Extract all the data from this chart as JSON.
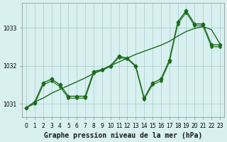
{
  "title": "Graphe pression niveau de la mer (hPa)",
  "bg_color": "#d8f0f0",
  "grid_color": "#b0d0d0",
  "line_color": "#1a6b1a",
  "x_labels": [
    "0",
    "1",
    "2",
    "3",
    "4",
    "5",
    "6",
    "7",
    "8",
    "9",
    "10",
    "11",
    "12",
    "13",
    "14",
    "15",
    "16",
    "17",
    "18",
    "19",
    "20",
    "21",
    "22",
    "23"
  ],
  "ylim": [
    1030.65,
    1033.65
  ],
  "yticks": [
    1031,
    1032,
    1033
  ],
  "y_main": [
    1030.9,
    1031.05,
    1031.55,
    1031.65,
    1031.5,
    1031.2,
    1031.2,
    1031.2,
    1031.85,
    1031.9,
    1032.0,
    1032.25,
    1032.2,
    1032.0,
    1031.15,
    1031.55,
    1031.65,
    1032.15,
    1033.15,
    1033.45,
    1033.1,
    1033.1,
    1032.55,
    1032.55
  ],
  "y_smooth": [
    1030.9,
    1031.05,
    1031.15,
    1031.28,
    1031.38,
    1031.48,
    1031.58,
    1031.68,
    1031.8,
    1031.9,
    1032.0,
    1032.1,
    1032.2,
    1032.3,
    1032.38,
    1032.46,
    1032.54,
    1032.64,
    1032.78,
    1032.9,
    1032.98,
    1033.03,
    1032.95,
    1032.58
  ],
  "y_second": [
    1030.9,
    1031.0,
    1031.5,
    1031.6,
    1031.45,
    1031.15,
    1031.15,
    1031.15,
    1031.8,
    1031.88,
    1031.98,
    1032.22,
    1032.18,
    1031.98,
    1031.12,
    1031.5,
    1031.6,
    1032.1,
    1033.1,
    1033.4,
    1033.05,
    1033.05,
    1032.5,
    1032.5
  ],
  "marker_size": 2.5,
  "linewidth": 1.0,
  "title_fontsize": 7,
  "tick_fontsize": 5.5
}
